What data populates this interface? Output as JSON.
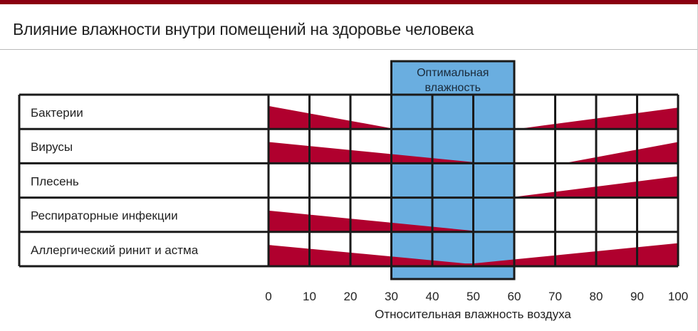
{
  "title": "Влияние влажности внутри помещений на здоровье человека",
  "chart_data": {
    "type": "area",
    "title": "Влияние влажности внутри помещений на здоровье человека",
    "xlabel": "Относительная влажность воздуха",
    "x_ticks": [
      "0",
      "10",
      "20",
      "30",
      "40",
      "50",
      "60",
      "70",
      "80",
      "90",
      "100"
    ],
    "xlim": [
      0,
      100
    ],
    "optimal_range": {
      "label": "Оптимальная влажность",
      "from": 30,
      "to": 60
    },
    "colors": {
      "wedge": "#b0002e",
      "optimal": "#6aaee0",
      "grid": "#1a1a1a"
    },
    "series": [
      {
        "name": "Бактерии",
        "segments": [
          [
            [
              0,
              0.65
            ],
            [
              30,
              0
            ]
          ],
          [
            [
              62,
              0
            ],
            [
              100,
              0.6
            ]
          ]
        ]
      },
      {
        "name": "Вирусы",
        "segments": [
          [
            [
              0,
              0.6
            ],
            [
              51,
              0
            ]
          ],
          [
            [
              73,
              0
            ],
            [
              100,
              0.6
            ]
          ]
        ]
      },
      {
        "name": "Плесень",
        "segments": [
          [
            [
              60,
              0
            ],
            [
              100,
              0.6
            ]
          ]
        ]
      },
      {
        "name": "Респираторные инфекции",
        "segments": [
          [
            [
              0,
              0.6
            ],
            [
              51,
              0
            ]
          ]
        ]
      },
      {
        "name": "Аллергический ринит и астма",
        "segments": [
          [
            [
              0,
              0.6
            ],
            [
              48,
              0.06
            ],
            [
              50,
              0.06
            ],
            [
              100,
              0.65
            ]
          ]
        ]
      }
    ]
  }
}
